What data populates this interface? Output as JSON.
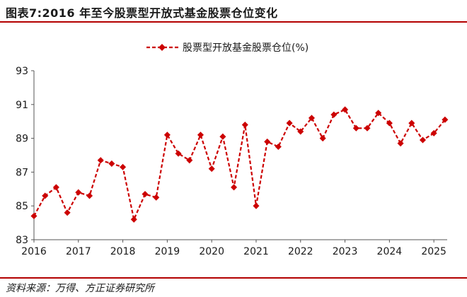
{
  "header": {
    "title": "图表7:2016 年至今股票型开放式基金股票仓位变化"
  },
  "footer": {
    "source": "资料来源：万得、方正证券研究所"
  },
  "chart_data": {
    "type": "line",
    "legend_position": "top-center",
    "grid": false,
    "xlim": [
      2016.0,
      2025.3
    ],
    "ylim": [
      83,
      93
    ],
    "y_ticks": [
      "83",
      "85",
      "87",
      "89",
      "91",
      "93"
    ],
    "x_ticks": [
      "2016",
      "2017",
      "2018",
      "2019",
      "2020",
      "2021",
      "2022",
      "2023",
      "2024",
      "2025"
    ],
    "colors": {
      "series": "#cc0000",
      "axis": "#555555"
    },
    "series": [
      {
        "name": "股票型开放基金股票仓位(%)",
        "style": "dashed-diamond",
        "x": [
          2016.0,
          2016.25,
          2016.5,
          2016.75,
          2017.0,
          2017.25,
          2017.5,
          2017.75,
          2018.0,
          2018.25,
          2018.5,
          2018.75,
          2019.0,
          2019.25,
          2019.5,
          2019.75,
          2020.0,
          2020.25,
          2020.5,
          2020.75,
          2021.0,
          2021.25,
          2021.5,
          2021.75,
          2022.0,
          2022.25,
          2022.5,
          2022.75,
          2023.0,
          2023.25,
          2023.5,
          2023.75,
          2024.0,
          2024.25,
          2024.5,
          2024.75,
          2025.0,
          2025.25
        ],
        "values": [
          84.4,
          85.6,
          86.1,
          84.6,
          85.8,
          85.6,
          87.7,
          87.5,
          87.3,
          84.2,
          85.7,
          85.5,
          89.2,
          88.1,
          87.7,
          89.2,
          87.2,
          89.1,
          86.1,
          89.8,
          85.0,
          88.8,
          88.5,
          89.9,
          89.4,
          90.2,
          89.0,
          90.4,
          90.7,
          89.6,
          89.6,
          90.5,
          89.9,
          88.7,
          89.9,
          88.9,
          89.3,
          90.1
        ]
      }
    ]
  }
}
